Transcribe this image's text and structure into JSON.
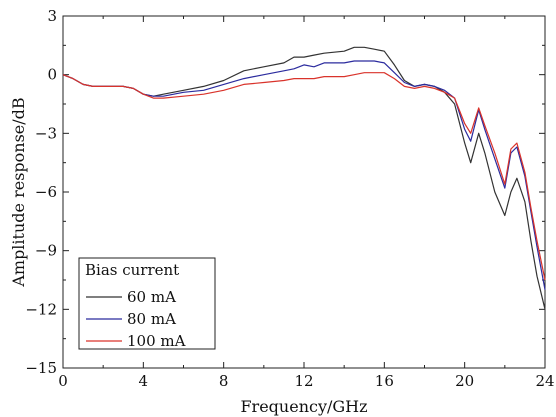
{
  "chart_data": {
    "type": "line",
    "title": "",
    "xlabel": "Frequency/GHz",
    "ylabel": "Amplitude response/dB",
    "xlim": [
      0,
      24
    ],
    "ylim": [
      -15,
      3
    ],
    "xticks": [
      0,
      4,
      8,
      12,
      16,
      20,
      24
    ],
    "yticks": [
      3,
      0,
      -3,
      -6,
      -9,
      -12,
      -15
    ],
    "grid": false,
    "legend": {
      "title": "Bias current",
      "placement": "bottom-left"
    },
    "series": [
      {
        "name": "60 mA",
        "color": "#333333",
        "x": [
          0,
          0.5,
          1,
          1.5,
          2,
          2.5,
          3,
          3.5,
          4,
          4.5,
          5,
          6,
          7,
          8,
          9,
          10,
          11,
          11.5,
          12,
          12.5,
          13,
          14,
          14.5,
          15,
          15.5,
          16,
          16.5,
          17,
          17.5,
          18,
          18.5,
          19,
          19.5,
          20,
          20.3,
          20.7,
          21,
          21.5,
          22,
          22.3,
          22.6,
          23,
          23.3,
          23.6,
          24
        ],
        "values": [
          0,
          -0.2,
          -0.5,
          -0.6,
          -0.6,
          -0.6,
          -0.6,
          -0.7,
          -1.0,
          -1.1,
          -1.0,
          -0.8,
          -0.6,
          -0.3,
          0.2,
          0.4,
          0.6,
          0.9,
          0.9,
          1.0,
          1.1,
          1.2,
          1.4,
          1.4,
          1.3,
          1.2,
          0.5,
          -0.3,
          -0.6,
          -0.5,
          -0.6,
          -0.9,
          -1.5,
          -3.5,
          -4.5,
          -3.0,
          -4.0,
          -6.0,
          -7.2,
          -6.0,
          -5.3,
          -6.5,
          -8.5,
          -10.3,
          -12.0
        ]
      },
      {
        "name": "80 mA",
        "color": "#2b2b9e",
        "x": [
          0,
          0.5,
          1,
          1.5,
          2,
          2.5,
          3,
          3.5,
          4,
          4.5,
          5,
          6,
          7,
          8,
          9,
          10,
          11,
          11.5,
          12,
          12.5,
          13,
          14,
          14.5,
          15,
          15.5,
          16,
          16.5,
          17,
          17.5,
          18,
          18.5,
          19,
          19.5,
          20,
          20.3,
          20.7,
          21,
          21.5,
          22,
          22.3,
          22.6,
          23,
          23.3,
          23.6,
          24
        ],
        "values": [
          0,
          -0.2,
          -0.5,
          -0.6,
          -0.6,
          -0.6,
          -0.6,
          -0.7,
          -1.0,
          -1.1,
          -1.1,
          -0.9,
          -0.8,
          -0.5,
          -0.2,
          0.0,
          0.2,
          0.3,
          0.5,
          0.4,
          0.6,
          0.6,
          0.7,
          0.7,
          0.7,
          0.6,
          0.1,
          -0.4,
          -0.6,
          -0.5,
          -0.6,
          -0.8,
          -1.2,
          -2.8,
          -3.4,
          -1.8,
          -2.8,
          -4.3,
          -5.8,
          -4.0,
          -3.7,
          -5.2,
          -7.0,
          -8.8,
          -11.0
        ]
      },
      {
        "name": "100 mA",
        "color": "#d9332b",
        "x": [
          0,
          0.5,
          1,
          1.5,
          2,
          2.5,
          3,
          3.5,
          4,
          4.5,
          5,
          6,
          7,
          8,
          9,
          10,
          11,
          11.5,
          12,
          12.5,
          13,
          14,
          14.5,
          15,
          15.5,
          16,
          16.5,
          17,
          17.5,
          18,
          18.5,
          19,
          19.5,
          20,
          20.3,
          20.7,
          21,
          21.5,
          22,
          22.3,
          22.6,
          23,
          23.3,
          23.6,
          24
        ],
        "values": [
          0,
          -0.2,
          -0.5,
          -0.6,
          -0.6,
          -0.6,
          -0.6,
          -0.7,
          -1.0,
          -1.2,
          -1.2,
          -1.1,
          -1.0,
          -0.8,
          -0.5,
          -0.4,
          -0.3,
          -0.2,
          -0.2,
          -0.2,
          -0.1,
          -0.1,
          0.0,
          0.1,
          0.1,
          0.1,
          -0.2,
          -0.6,
          -0.7,
          -0.6,
          -0.7,
          -0.9,
          -1.2,
          -2.5,
          -3.0,
          -1.7,
          -2.6,
          -4.0,
          -5.6,
          -3.8,
          -3.5,
          -5.0,
          -6.8,
          -8.5,
          -10.5
        ]
      }
    ]
  }
}
